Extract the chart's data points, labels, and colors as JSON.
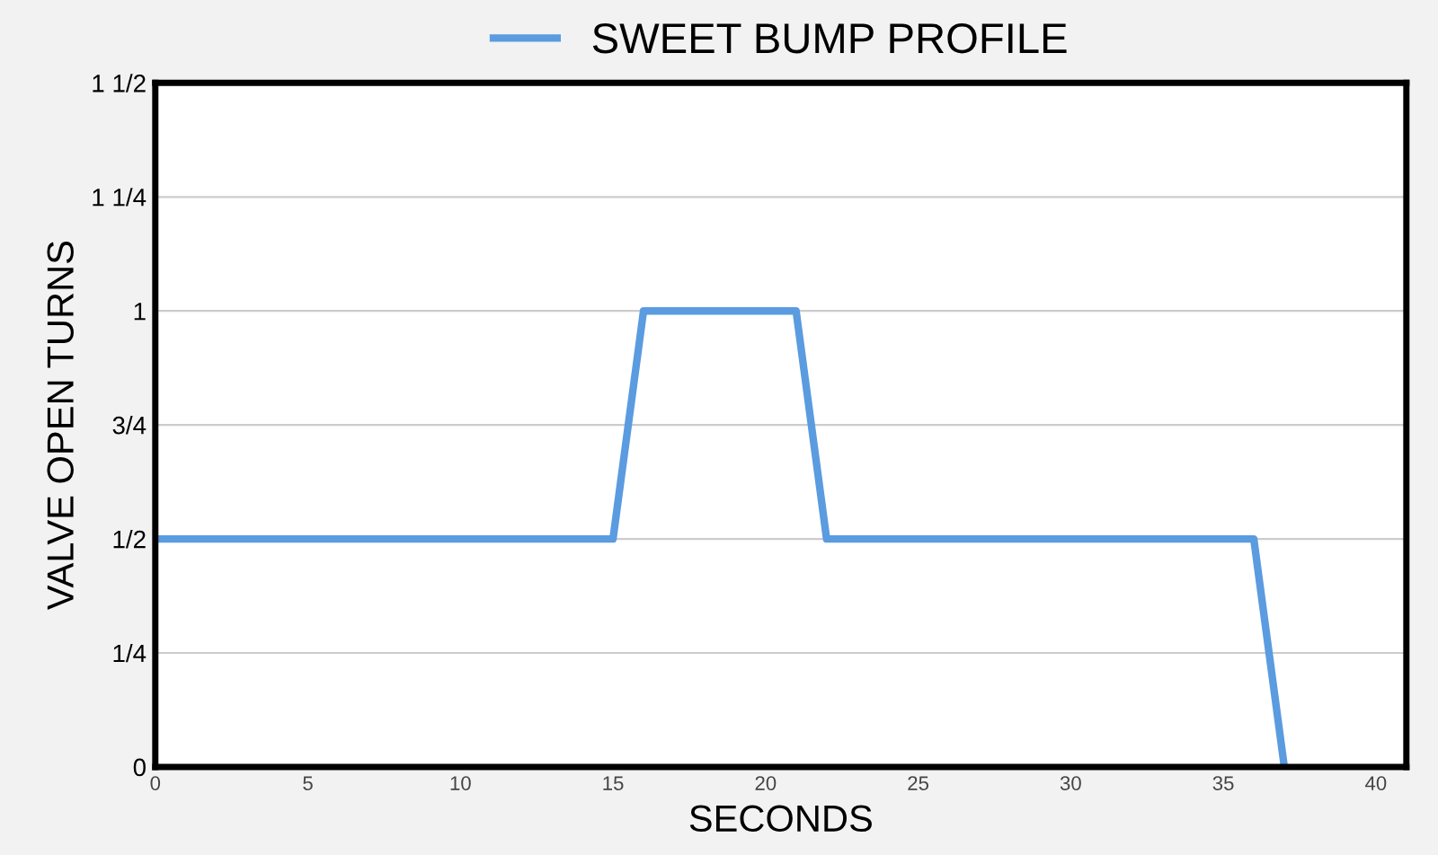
{
  "chart_data": {
    "type": "line",
    "xlabel": "SECONDS",
    "ylabel": "VALVE OPEN TURNS",
    "series": [
      {
        "name": "SWEET BUMP PROFILE",
        "color": "#5b9be0",
        "x": [
          0,
          15,
          16,
          21,
          22,
          36,
          37
        ],
        "values": [
          0.5,
          0.5,
          1,
          1,
          0.5,
          0.5,
          0
        ]
      }
    ],
    "xlim": [
      0,
      41
    ],
    "xticks": [
      0,
      5,
      10,
      15,
      20,
      25,
      30,
      35,
      40
    ],
    "ylim": [
      0,
      1.5
    ],
    "yticks": [
      0,
      {
        "value": 0.25,
        "label": "1/4"
      },
      {
        "value": 0.5,
        "label": "1/2"
      },
      {
        "value": 0.75,
        "label": "3/4"
      },
      1,
      {
        "value": 1.25,
        "label": "1 1/4"
      },
      {
        "value": 1.5,
        "label": "1 1/2"
      }
    ],
    "grid": "y",
    "legend": "top",
    "marker": "none",
    "line_style": "solid"
  }
}
